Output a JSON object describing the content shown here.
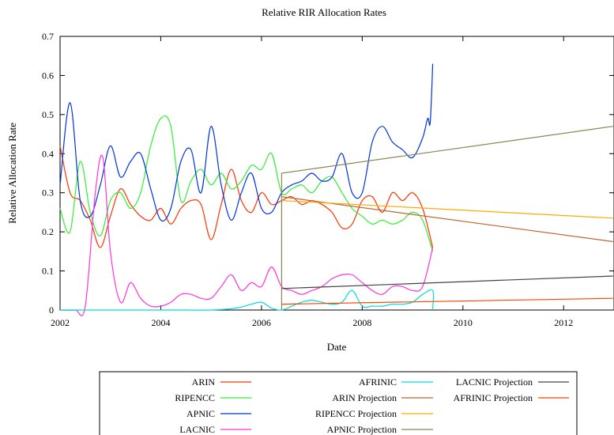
{
  "chart_data": {
    "type": "line",
    "title": "Relative RIR Allocation Rates",
    "xlabel": "Date",
    "ylabel": "Relative Allocation Rate",
    "xlim": [
      2002,
      2013
    ],
    "ylim": [
      0,
      0.7
    ],
    "xticks": [
      "2002",
      "2004",
      "2006",
      "2008",
      "2010",
      "2012"
    ],
    "yticks": [
      "0",
      "0.1",
      "0.2",
      "0.3",
      "0.4",
      "0.5",
      "0.6",
      "0.7"
    ],
    "grid": false,
    "legend_position": "bottom",
    "series": [
      {
        "name": "ARIN",
        "color": "#ff3300",
        "x": [
          2002.0,
          2002.2,
          2002.4,
          2002.6,
          2002.8,
          2003.0,
          2003.2,
          2003.4,
          2003.6,
          2003.8,
          2004.0,
          2004.2,
          2004.4,
          2004.6,
          2004.8,
          2005.0,
          2005.2,
          2005.4,
          2005.6,
          2005.8,
          2006.0,
          2006.2,
          2006.4,
          2006.6,
          2006.8,
          2007.0,
          2007.2,
          2007.4,
          2007.6,
          2007.8,
          2008.0,
          2008.2,
          2008.4,
          2008.6,
          2008.8,
          2009.0,
          2009.2,
          2009.4
        ],
        "y": [
          0.42,
          0.3,
          0.28,
          0.23,
          0.16,
          0.24,
          0.31,
          0.27,
          0.24,
          0.23,
          0.26,
          0.22,
          0.26,
          0.28,
          0.27,
          0.18,
          0.27,
          0.36,
          0.28,
          0.25,
          0.3,
          0.27,
          0.28,
          0.29,
          0.27,
          0.28,
          0.27,
          0.25,
          0.21,
          0.22,
          0.28,
          0.29,
          0.25,
          0.3,
          0.28,
          0.3,
          0.26,
          0.16
        ]
      },
      {
        "name": "RIPENCC",
        "color": "#33ee33",
        "x": [
          2002.0,
          2002.2,
          2002.4,
          2002.6,
          2002.8,
          2003.0,
          2003.2,
          2003.4,
          2003.6,
          2003.8,
          2004.0,
          2004.2,
          2004.4,
          2004.6,
          2004.8,
          2005.0,
          2005.2,
          2005.4,
          2005.6,
          2005.8,
          2006.0,
          2006.2,
          2006.4,
          2006.6,
          2006.8,
          2007.0,
          2007.2,
          2007.4,
          2007.6,
          2007.8,
          2008.0,
          2008.2,
          2008.4,
          2008.6,
          2008.8,
          2009.0,
          2009.2,
          2009.4
        ],
        "y": [
          0.26,
          0.2,
          0.38,
          0.25,
          0.19,
          0.28,
          0.3,
          0.26,
          0.3,
          0.42,
          0.49,
          0.47,
          0.28,
          0.33,
          0.36,
          0.32,
          0.35,
          0.31,
          0.33,
          0.37,
          0.36,
          0.4,
          0.3,
          0.31,
          0.32,
          0.3,
          0.33,
          0.34,
          0.3,
          0.26,
          0.24,
          0.22,
          0.23,
          0.22,
          0.23,
          0.25,
          0.23,
          0.15
        ]
      },
      {
        "name": "APNIC",
        "color": "#0033dd",
        "x": [
          2002.0,
          2002.2,
          2002.4,
          2002.6,
          2002.8,
          2003.0,
          2003.2,
          2003.4,
          2003.6,
          2003.8,
          2004.0,
          2004.2,
          2004.4,
          2004.6,
          2004.8,
          2005.0,
          2005.2,
          2005.4,
          2005.6,
          2005.8,
          2006.0,
          2006.2,
          2006.4,
          2006.6,
          2006.8,
          2007.0,
          2007.2,
          2007.4,
          2007.6,
          2007.8,
          2008.0,
          2008.2,
          2008.4,
          2008.6,
          2008.8,
          2009.0,
          2009.2,
          2009.3,
          2009.35,
          2009.4
        ],
        "y": [
          0.32,
          0.53,
          0.28,
          0.24,
          0.32,
          0.42,
          0.34,
          0.38,
          0.4,
          0.31,
          0.23,
          0.26,
          0.38,
          0.41,
          0.3,
          0.47,
          0.32,
          0.23,
          0.3,
          0.35,
          0.26,
          0.25,
          0.3,
          0.32,
          0.33,
          0.35,
          0.33,
          0.34,
          0.4,
          0.3,
          0.3,
          0.43,
          0.47,
          0.43,
          0.41,
          0.39,
          0.44,
          0.49,
          0.48,
          0.63
        ]
      },
      {
        "name": "LACNIC",
        "color": "#ff33dd",
        "x": [
          2002.0,
          2002.3,
          2002.5,
          2002.7,
          2002.85,
          2003.0,
          2003.2,
          2003.4,
          2003.6,
          2003.8,
          2004.0,
          2004.2,
          2004.4,
          2004.6,
          2004.8,
          2005.0,
          2005.2,
          2005.4,
          2005.6,
          2005.8,
          2006.0,
          2006.2,
          2006.4,
          2006.6,
          2006.8,
          2007.0,
          2007.2,
          2007.4,
          2007.6,
          2007.8,
          2008.0,
          2008.2,
          2008.4,
          2008.6,
          2008.8,
          2009.0,
          2009.2,
          2009.4
        ],
        "y": [
          0.0,
          0.0,
          0.01,
          0.3,
          0.39,
          0.15,
          0.02,
          0.07,
          0.03,
          0.01,
          0.01,
          0.02,
          0.04,
          0.04,
          0.03,
          0.03,
          0.06,
          0.09,
          0.05,
          0.07,
          0.06,
          0.11,
          0.06,
          0.05,
          0.04,
          0.05,
          0.06,
          0.08,
          0.09,
          0.09,
          0.07,
          0.05,
          0.04,
          0.06,
          0.06,
          0.05,
          0.06,
          0.16
        ]
      },
      {
        "name": "AFRINIC",
        "color": "#00dddd",
        "x": [
          2002.0,
          2002.5,
          2003.0,
          2003.5,
          2004.0,
          2004.5,
          2005.0,
          2005.5,
          2005.8,
          2006.0,
          2006.2,
          2006.4,
          2006.6,
          2006.8,
          2007.0,
          2007.2,
          2007.4,
          2007.6,
          2007.8,
          2008.0,
          2008.2,
          2008.4,
          2008.6,
          2008.8,
          2009.0,
          2009.2,
          2009.4,
          2009.4
        ],
        "y": [
          0.0,
          0.0,
          0.0,
          0.0,
          0.0,
          0.0,
          0.0,
          0.005,
          0.015,
          0.02,
          0.005,
          0.0,
          0.01,
          0.02,
          0.025,
          0.02,
          0.015,
          0.02,
          0.05,
          0.01,
          0.01,
          0.01,
          0.015,
          0.015,
          0.02,
          0.04,
          0.05,
          0.0
        ]
      },
      {
        "name": "ARIN Projection",
        "color": "#bb6633",
        "x": [
          2006.4,
          2012.98
        ],
        "y": [
          0.29,
          0.175
        ]
      },
      {
        "name": "RIPENCC Projection",
        "color": "#ffaa00",
        "x": [
          2006.4,
          2012.98
        ],
        "y": [
          0.28,
          0.235
        ]
      },
      {
        "name": "APNIC Projection",
        "color": "#888855",
        "x": [
          2006.4,
          2006.4,
          2012.98
        ],
        "y": [
          0.0,
          0.35,
          0.47
        ]
      },
      {
        "name": "LACNIC Projection",
        "color": "#444444",
        "x": [
          2006.4,
          2012.98
        ],
        "y": [
          0.055,
          0.087
        ]
      },
      {
        "name": "AFRINIC Projection",
        "color": "#ff4400",
        "x": [
          2006.4,
          2012.98
        ],
        "y": [
          0.015,
          0.03
        ]
      }
    ]
  }
}
